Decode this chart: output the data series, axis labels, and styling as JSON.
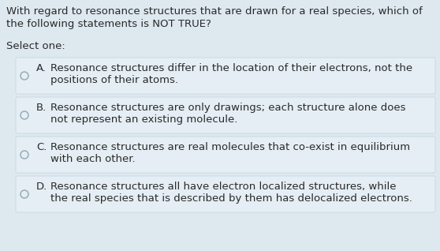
{
  "background_color": "#dde8ef",
  "text_color": "#2a2a2a",
  "question_line1": "With regard to resonance structures that are drawn for a real species, which of",
  "question_line2": "the following statements is NOT TRUE?",
  "select_one": "Select one:",
  "options": [
    {
      "letter": "A.",
      "text_line1": "Resonance structures differ in the location of their electrons, not the",
      "text_line2": "positions of their atoms."
    },
    {
      "letter": "B.",
      "text_line1": "Resonance structures are only drawings; each structure alone does",
      "text_line2": "not represent an existing molecule."
    },
    {
      "letter": "C.",
      "text_line1": "Resonance structures are real molecules that co-exist in equilibrium",
      "text_line2": "with each other."
    },
    {
      "letter": "D.",
      "text_line1": "Resonance structures all have electron localized structures, while",
      "text_line2": "the real species that is described by them has delocalized electrons."
    }
  ],
  "option_box_color": "#e4eef4",
  "option_box_edge": "#c8d8e2",
  "circle_edge_color": "#9aacb8",
  "font_size": 9.5,
  "figwidth": 5.58,
  "figheight": 3.18,
  "dpi": 100
}
